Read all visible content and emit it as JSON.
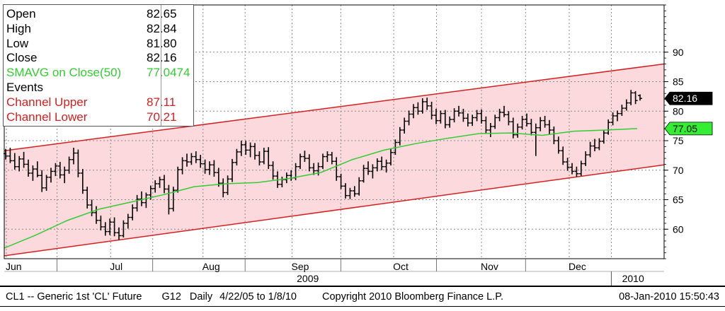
{
  "chart_data": {
    "type": "candlestick",
    "title": "",
    "xlabel": "",
    "ylabel": "",
    "ylim": [
      55,
      98
    ],
    "y_ticks": [
      60,
      65,
      70,
      75,
      80,
      85,
      90
    ],
    "x_month_labels": [
      "Jun",
      "Jul",
      "Aug",
      "Sep",
      "Oct",
      "Nov",
      "Dec"
    ],
    "x_year_labels": [
      "2009",
      "2010"
    ],
    "grid": true,
    "legend": {
      "placement": "top-left",
      "rows": [
        {
          "label": "Open",
          "value": "82.65",
          "color": "#000000"
        },
        {
          "label": "High",
          "value": "82.84",
          "color": "#000000"
        },
        {
          "label": "Low",
          "value": "81.80",
          "color": "#000000"
        },
        {
          "label": "Close",
          "value": "82.16",
          "color": "#000000"
        },
        {
          "label": "SMAVG on Close(50)",
          "value": "77.0474",
          "color": "#33cc33"
        },
        {
          "label": "Events",
          "value": "",
          "color": "#000000"
        },
        {
          "label": "Channel Upper",
          "value": "87.11",
          "color": "#d42020"
        },
        {
          "label": "Channel Lower",
          "value": "70.21",
          "color": "#d42020"
        }
      ]
    },
    "last_price_tag": {
      "value": "82.16",
      "y": 82.16,
      "color": "#000000"
    },
    "sma_tag": {
      "value": "77.05",
      "y": 77.05,
      "color": "#33ee33"
    },
    "channel_upper_start": 73.3,
    "channel_upper_end": 88.0,
    "channel_lower_start": 55.5,
    "channel_lower_end": 70.9,
    "channel_fill_color": "#fcd9dc",
    "channel_line_color": "#d42020",
    "sma_color": "#33cc33",
    "bars": [
      [
        72.8,
        73.6,
        71.8,
        72.4
      ],
      [
        72.4,
        73.8,
        71.2,
        71.6
      ],
      [
        71.6,
        72.9,
        70.1,
        70.6
      ],
      [
        70.6,
        72.4,
        69.8,
        71.9
      ],
      [
        71.9,
        73.1,
        70.4,
        71.0
      ],
      [
        71.0,
        71.8,
        68.9,
        69.5
      ],
      [
        69.5,
        70.8,
        68.2,
        70.2
      ],
      [
        70.2,
        71.5,
        68.8,
        69.1
      ],
      [
        69.1,
        70.0,
        66.3,
        67.0
      ],
      [
        67.0,
        69.2,
        66.5,
        68.8
      ],
      [
        68.8,
        70.4,
        67.9,
        69.8
      ],
      [
        69.8,
        71.2,
        69.0,
        70.7
      ],
      [
        70.7,
        71.4,
        68.6,
        69.2
      ],
      [
        69.2,
        70.6,
        67.8,
        70.0
      ],
      [
        70.0,
        72.3,
        69.4,
        71.8
      ],
      [
        71.8,
        73.8,
        71.0,
        72.9
      ],
      [
        72.9,
        73.5,
        68.8,
        69.5
      ],
      [
        69.5,
        70.2,
        66.0,
        66.6
      ],
      [
        66.6,
        67.2,
        63.5,
        64.1
      ],
      [
        64.1,
        65.0,
        62.2,
        62.8
      ],
      [
        62.8,
        63.9,
        60.9,
        61.5
      ],
      [
        61.5,
        62.3,
        59.8,
        60.4
      ],
      [
        60.4,
        61.2,
        58.9,
        59.6
      ],
      [
        59.6,
        61.8,
        59.0,
        61.2
      ],
      [
        61.2,
        62.0,
        58.8,
        59.4
      ],
      [
        59.4,
        60.3,
        58.2,
        58.9
      ],
      [
        58.9,
        61.5,
        58.6,
        61.0
      ],
      [
        61.0,
        62.6,
        60.1,
        62.0
      ],
      [
        62.0,
        64.2,
        61.5,
        63.6
      ],
      [
        63.6,
        65.8,
        63.0,
        65.1
      ],
      [
        65.1,
        66.4,
        63.9,
        64.5
      ],
      [
        64.5,
        66.2,
        63.6,
        65.8
      ],
      [
        65.8,
        67.4,
        65.0,
        66.9
      ],
      [
        66.9,
        68.3,
        66.2,
        67.7
      ],
      [
        67.7,
        68.9,
        67.0,
        68.4
      ],
      [
        68.4,
        69.2,
        66.1,
        66.8
      ],
      [
        66.8,
        67.5,
        62.5,
        63.5
      ],
      [
        63.5,
        67.2,
        63.0,
        66.6
      ],
      [
        66.6,
        70.6,
        66.2,
        70.1
      ],
      [
        70.1,
        72.2,
        69.3,
        71.6
      ],
      [
        71.6,
        72.8,
        70.6,
        71.4
      ],
      [
        71.4,
        72.9,
        70.9,
        72.3
      ],
      [
        72.3,
        73.2,
        71.2,
        71.8
      ],
      [
        71.8,
        72.6,
        70.4,
        71.1
      ],
      [
        71.1,
        71.8,
        69.4,
        70.1
      ],
      [
        70.1,
        71.5,
        69.2,
        70.9
      ],
      [
        70.9,
        71.7,
        68.9,
        69.6
      ],
      [
        69.6,
        70.4,
        67.2,
        67.8
      ],
      [
        67.8,
        68.6,
        65.4,
        66.2
      ],
      [
        66.2,
        69.1,
        65.8,
        68.5
      ],
      [
        68.5,
        71.9,
        68.0,
        71.3
      ],
      [
        71.3,
        73.6,
        70.8,
        73.1
      ],
      [
        73.1,
        75.0,
        72.4,
        74.3
      ],
      [
        74.3,
        75.0,
        72.6,
        73.4
      ],
      [
        73.4,
        74.7,
        72.2,
        74.0
      ],
      [
        74.0,
        74.6,
        71.8,
        72.5
      ],
      [
        72.5,
        73.2,
        70.8,
        71.4
      ],
      [
        71.4,
        73.8,
        71.0,
        73.2
      ],
      [
        73.2,
        73.9,
        70.2,
        70.8
      ],
      [
        70.8,
        71.5,
        68.4,
        69.0
      ],
      [
        69.0,
        69.8,
        67.0,
        67.6
      ],
      [
        67.6,
        68.9,
        67.1,
        68.4
      ],
      [
        68.4,
        69.6,
        67.8,
        69.1
      ],
      [
        69.1,
        70.0,
        68.2,
        68.7
      ],
      [
        68.7,
        71.2,
        68.3,
        70.6
      ],
      [
        70.6,
        72.8,
        70.2,
        72.3
      ],
      [
        72.3,
        73.3,
        71.4,
        72.0
      ],
      [
        72.0,
        72.7,
        69.8,
        70.4
      ],
      [
        70.4,
        71.2,
        69.2,
        69.9
      ],
      [
        69.9,
        71.3,
        69.1,
        70.6
      ],
      [
        70.6,
        72.8,
        70.2,
        72.3
      ],
      [
        72.3,
        73.2,
        71.4,
        72.6
      ],
      [
        72.6,
        73.1,
        71.0,
        71.5
      ],
      [
        71.5,
        72.2,
        68.2,
        68.9
      ],
      [
        68.9,
        69.4,
        66.8,
        67.3
      ],
      [
        67.3,
        67.8,
        65.2,
        65.7
      ],
      [
        65.7,
        67.0,
        65.1,
        66.5
      ],
      [
        66.5,
        67.3,
        65.5,
        66.0
      ],
      [
        66.0,
        68.8,
        65.7,
        68.2
      ],
      [
        68.2,
        70.9,
        67.9,
        70.3
      ],
      [
        70.3,
        71.5,
        69.2,
        69.8
      ],
      [
        69.8,
        71.0,
        68.6,
        70.4
      ],
      [
        70.4,
        72.0,
        69.8,
        71.5
      ],
      [
        71.5,
        72.3,
        70.0,
        70.6
      ],
      [
        70.6,
        71.8,
        69.6,
        71.2
      ],
      [
        71.2,
        73.6,
        70.8,
        73.0
      ],
      [
        73.0,
        75.2,
        72.6,
        74.7
      ],
      [
        74.7,
        77.3,
        74.2,
        76.8
      ],
      [
        76.8,
        78.9,
        76.2,
        78.3
      ],
      [
        78.3,
        80.1,
        77.6,
        79.5
      ],
      [
        79.5,
        81.2,
        78.8,
        80.6
      ],
      [
        80.6,
        81.5,
        79.4,
        80.0
      ],
      [
        80.0,
        82.2,
        79.6,
        81.6
      ],
      [
        81.6,
        82.3,
        80.2,
        80.9
      ],
      [
        80.9,
        81.6,
        78.6,
        79.3
      ],
      [
        79.3,
        80.4,
        77.8,
        78.4
      ],
      [
        78.4,
        80.1,
        77.9,
        79.6
      ],
      [
        79.6,
        80.2,
        77.1,
        77.7
      ],
      [
        77.7,
        79.1,
        77.2,
        78.6
      ],
      [
        78.6,
        80.5,
        78.1,
        80.0
      ],
      [
        80.0,
        80.9,
        79.1,
        79.7
      ],
      [
        79.7,
        80.4,
        78.2,
        78.8
      ],
      [
        78.8,
        79.6,
        77.4,
        78.0
      ],
      [
        78.0,
        79.4,
        77.5,
        78.9
      ],
      [
        78.9,
        80.2,
        78.3,
        79.6
      ],
      [
        79.6,
        80.3,
        77.9,
        78.4
      ],
      [
        78.4,
        79.1,
        76.2,
        76.8
      ],
      [
        76.8,
        78.0,
        75.6,
        77.4
      ],
      [
        77.4,
        79.4,
        77.0,
        78.9
      ],
      [
        78.9,
        80.4,
        78.3,
        79.8
      ],
      [
        79.8,
        80.9,
        79.0,
        79.4
      ],
      [
        79.4,
        80.0,
        77.6,
        78.2
      ],
      [
        78.2,
        78.9,
        75.4,
        76.0
      ],
      [
        76.0,
        77.9,
        75.5,
        77.3
      ],
      [
        77.3,
        79.2,
        76.9,
        78.6
      ],
      [
        78.6,
        79.6,
        77.4,
        77.9
      ],
      [
        77.9,
        78.7,
        75.9,
        76.4
      ],
      [
        76.4,
        77.9,
        72.4,
        77.2
      ],
      [
        77.2,
        79.0,
        76.6,
        78.4
      ],
      [
        78.4,
        79.2,
        77.2,
        77.7
      ],
      [
        77.7,
        78.5,
        76.1,
        76.8
      ],
      [
        76.8,
        77.4,
        74.4,
        75.0
      ],
      [
        75.0,
        75.7,
        72.8,
        73.3
      ],
      [
        73.3,
        74.0,
        70.9,
        71.4
      ],
      [
        71.4,
        72.1,
        69.9,
        70.5
      ],
      [
        70.5,
        71.2,
        69.3,
        69.8
      ],
      [
        69.8,
        70.6,
        68.9,
        69.4
      ],
      [
        69.4,
        71.6,
        69.0,
        71.1
      ],
      [
        71.1,
        73.2,
        70.7,
        72.6
      ],
      [
        72.6,
        74.8,
        72.2,
        74.1
      ],
      [
        74.1,
        75.3,
        73.2,
        73.8
      ],
      [
        73.8,
        75.4,
        73.4,
        74.9
      ],
      [
        74.9,
        76.8,
        74.5,
        76.3
      ],
      [
        76.3,
        78.6,
        76.0,
        78.1
      ],
      [
        78.1,
        79.8,
        77.6,
        79.2
      ],
      [
        79.2,
        80.1,
        78.3,
        79.6
      ],
      [
        79.6,
        81.1,
        79.2,
        80.5
      ],
      [
        80.5,
        82.0,
        80.1,
        81.4
      ],
      [
        81.4,
        83.6,
        81.0,
        83.1
      ],
      [
        83.1,
        83.4,
        81.2,
        81.8
      ],
      [
        82.65,
        82.84,
        81.8,
        82.16
      ]
    ],
    "sma": [
      [
        0,
        56.8
      ],
      [
        0.05,
        59.0
      ],
      [
        0.1,
        61.5
      ],
      [
        0.15,
        63.4
      ],
      [
        0.2,
        64.6
      ],
      [
        0.25,
        65.8
      ],
      [
        0.3,
        67.2
      ],
      [
        0.35,
        67.7
      ],
      [
        0.4,
        67.9
      ],
      [
        0.45,
        68.6
      ],
      [
        0.5,
        69.6
      ],
      [
        0.55,
        71.8
      ],
      [
        0.6,
        73.4
      ],
      [
        0.65,
        74.5
      ],
      [
        0.7,
        75.4
      ],
      [
        0.75,
        76.2
      ],
      [
        0.8,
        76.3
      ],
      [
        0.85,
        75.9
      ],
      [
        0.9,
        76.6
      ],
      [
        0.95,
        76.8
      ],
      [
        1.0,
        77.05
      ]
    ],
    "x_axis_label_positions": [
      0.0,
      0.158,
      0.298,
      0.433,
      0.587,
      0.72,
      0.853
    ],
    "x_year_label_positions": [
      0.46,
      0.953
    ]
  },
  "footer": {
    "ticker": "CL1 -- Generic 1st 'CL' Future",
    "mode": "G12",
    "frequency": "Daily",
    "range": "4/22/05 to 1/8/10",
    "copyright": "Copyright 2010 Bloomberg Finance L.P.",
    "timestamp": "08-Jan-2010 15:50:43"
  }
}
